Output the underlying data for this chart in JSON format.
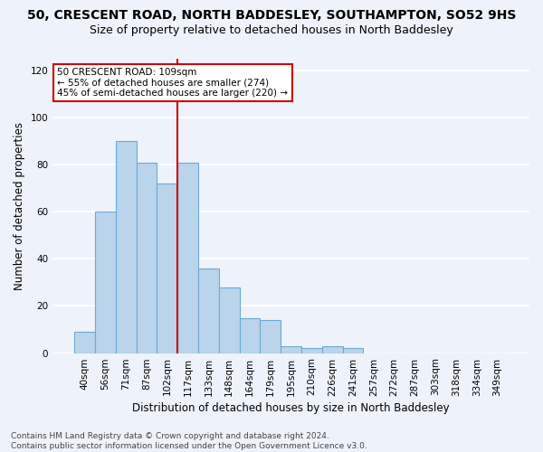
{
  "title": "50, CRESCENT ROAD, NORTH BADDESLEY, SOUTHAMPTON, SO52 9HS",
  "subtitle": "Size of property relative to detached houses in North Baddesley",
  "xlabel": "Distribution of detached houses by size in North Baddesley",
  "ylabel": "Number of detached properties",
  "bar_labels": [
    "40sqm",
    "56sqm",
    "71sqm",
    "87sqm",
    "102sqm",
    "117sqm",
    "133sqm",
    "148sqm",
    "164sqm",
    "179sqm",
    "195sqm",
    "210sqm",
    "226sqm",
    "241sqm",
    "257sqm",
    "272sqm",
    "287sqm",
    "303sqm",
    "318sqm",
    "334sqm",
    "349sqm"
  ],
  "bar_heights": [
    9,
    60,
    90,
    81,
    72,
    81,
    36,
    28,
    15,
    14,
    3,
    2,
    3,
    2,
    0,
    0,
    0,
    0,
    0,
    0,
    0
  ],
  "bar_color": "#bad4ec",
  "bar_edge_color": "#6aaad4",
  "background_color": "#eef2fa",
  "grid_color": "#ffffff",
  "vline_x_index": 5,
  "vline_color": "#cc0000",
  "annotation_line1": "50 CRESCENT ROAD: 109sqm",
  "annotation_line2": "← 55% of detached houses are smaller (274)",
  "annotation_line3": "45% of semi-detached houses are larger (220) →",
  "annotation_box_color": "#ffffff",
  "annotation_box_edge": "#cc0000",
  "ylim": [
    0,
    125
  ],
  "yticks": [
    0,
    20,
    40,
    60,
    80,
    100,
    120
  ],
  "footer_text": "Contains HM Land Registry data © Crown copyright and database right 2024.\nContains public sector information licensed under the Open Government Licence v3.0.",
  "title_fontsize": 10,
  "subtitle_fontsize": 9,
  "xlabel_fontsize": 8.5,
  "ylabel_fontsize": 8.5,
  "tick_fontsize": 7.5,
  "annotation_fontsize": 7.5,
  "footer_fontsize": 6.5
}
